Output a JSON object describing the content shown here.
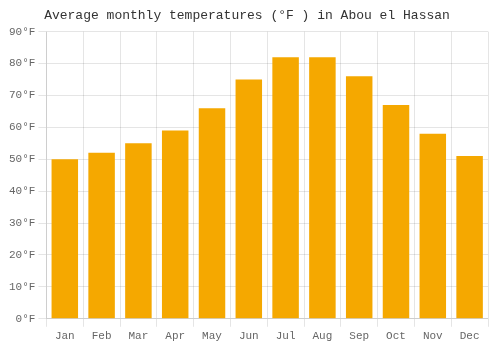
{
  "chart_data": {
    "type": "bar",
    "title": "Average monthly temperatures (°F ) in Abou el Hassan",
    "categories": [
      "Jan",
      "Feb",
      "Mar",
      "Apr",
      "May",
      "Jun",
      "Jul",
      "Aug",
      "Sep",
      "Oct",
      "Nov",
      "Dec"
    ],
    "values": [
      50,
      52,
      55,
      59,
      66,
      75,
      82,
      82,
      76,
      67,
      58,
      51
    ],
    "color": "#F5A800",
    "ylim": [
      0,
      90
    ],
    "yticks": [
      {
        "value": 0,
        "label": "0°F"
      },
      {
        "value": 10,
        "label": "10°F"
      },
      {
        "value": 20,
        "label": "20°F"
      },
      {
        "value": 30,
        "label": "30°F"
      },
      {
        "value": 40,
        "label": "40°F"
      },
      {
        "value": 50,
        "label": "50°F"
      },
      {
        "value": 60,
        "label": "60°F"
      },
      {
        "value": 70,
        "label": "70°F"
      },
      {
        "value": 80,
        "label": "80°F"
      },
      {
        "value": 90,
        "label": "90°F"
      }
    ],
    "grid": true
  }
}
